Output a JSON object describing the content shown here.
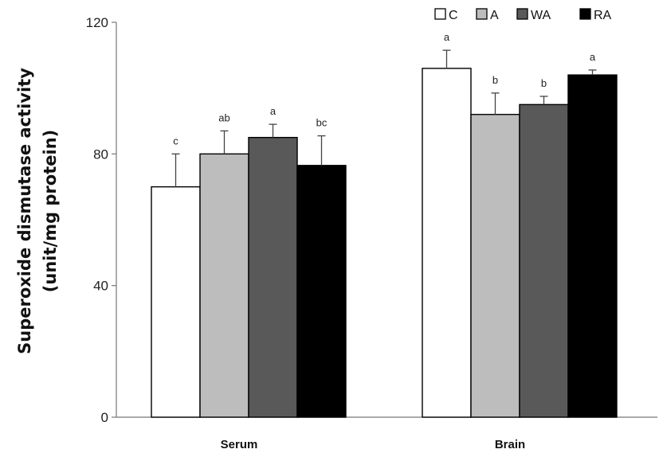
{
  "chart_data": {
    "type": "bar",
    "title": "",
    "xlabel": "",
    "ylabel_lines": [
      "Superoxide dismutase activity",
      "(unit/mg protein)"
    ],
    "ylim": [
      0,
      120
    ],
    "yticks": [
      0,
      40,
      80,
      120
    ],
    "categories": [
      "Serum",
      "Brain"
    ],
    "series": [
      {
        "name": "C",
        "color": "#ffffff",
        "values": [
          70,
          106
        ],
        "errors": [
          10,
          5.5
        ],
        "labels": [
          "c",
          "a"
        ]
      },
      {
        "name": "A",
        "color": "#bdbdbd",
        "values": [
          80,
          92
        ],
        "errors": [
          7,
          6.5
        ],
        "labels": [
          "ab",
          "b"
        ]
      },
      {
        "name": "WA",
        "color": "#595959",
        "values": [
          85,
          95
        ],
        "errors": [
          4,
          2.5
        ],
        "labels": [
          "a",
          "b"
        ]
      },
      {
        "name": "RA",
        "color": "#000000",
        "values": [
          76.5,
          104
        ],
        "errors": [
          9,
          1.5
        ],
        "labels": [
          "bc",
          "a"
        ]
      }
    ],
    "legend_position": "top-right",
    "grid": false
  }
}
